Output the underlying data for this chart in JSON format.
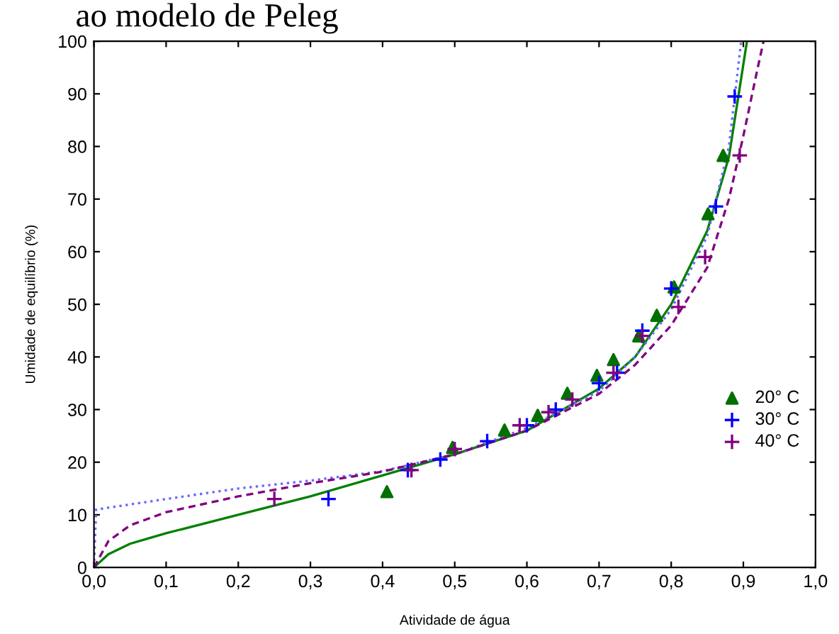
{
  "chart_data": {
    "type": "scatter",
    "title": "ao modelo de Peleg",
    "xlabel": "Atividade de água",
    "ylabel": "Umidade de equilíbrio (%)",
    "xlim": [
      0,
      1
    ],
    "ylim": [
      0,
      100
    ],
    "xticks": [
      {
        "value": 0,
        "label": "0,0"
      },
      {
        "value": 0.1,
        "label": "0,1"
      },
      {
        "value": 0.2,
        "label": "0,2"
      },
      {
        "value": 0.3,
        "label": "0,3"
      },
      {
        "value": 0.4,
        "label": "0,4"
      },
      {
        "value": 0.5,
        "label": "0,5"
      },
      {
        "value": 0.6,
        "label": "0,6"
      },
      {
        "value": 0.7,
        "label": "0,7"
      },
      {
        "value": 0.8,
        "label": "0,8"
      },
      {
        "value": 0.9,
        "label": "0,9"
      },
      {
        "value": 1,
        "label": "1,0"
      }
    ],
    "yticks": [
      0,
      10,
      20,
      30,
      40,
      50,
      60,
      70,
      80,
      90,
      100
    ],
    "grid": false,
    "legend": "right",
    "series": [
      {
        "name": "20° C",
        "marker": "triangle",
        "color": "#007000",
        "x": [
          0.406,
          0.497,
          0.569,
          0.615,
          0.656,
          0.697,
          0.72,
          0.755,
          0.78,
          0.804,
          0.851,
          0.872
        ],
        "values": [
          14.4,
          22.8,
          26.1,
          28.9,
          33.1,
          36.5,
          39.5,
          44,
          47.9,
          53.3,
          67.2,
          78.3
        ]
      },
      {
        "name": "30° C",
        "marker": "cross",
        "color": "#0000ff",
        "x": [
          0.325,
          0.435,
          0.48,
          0.545,
          0.6,
          0.64,
          0.7,
          0.725,
          0.76,
          0.8,
          0.862,
          0.888
        ],
        "values": [
          13,
          18.5,
          20.5,
          24,
          27,
          30,
          35,
          37,
          45,
          53,
          68.6,
          89.5
        ]
      },
      {
        "name": "40° C",
        "marker": "cross",
        "color": "#800080",
        "x": [
          0.25,
          0.44,
          0.5,
          0.59,
          0.63,
          0.663,
          0.72,
          0.76,
          0.81,
          0.847,
          0.895
        ],
        "values": [
          13,
          18.5,
          22.5,
          27,
          29.5,
          31.9,
          37,
          44,
          49.5,
          59,
          78.3
        ]
      },
      {
        "type": "line",
        "line_style": "solid",
        "color": "#008000",
        "x": [
          0,
          0.02,
          0.05,
          0.1,
          0.2,
          0.3,
          0.4,
          0.5,
          0.6,
          0.7,
          0.75,
          0.8,
          0.85,
          0.88,
          0.905
        ],
        "values": [
          0,
          2.5,
          4.5,
          6.5,
          10,
          13.5,
          17.5,
          21.5,
          26,
          34,
          40,
          50,
          64,
          78,
          100
        ]
      },
      {
        "type": "line",
        "line_style": "dotted",
        "color": "#6a6aff",
        "x": [
          0,
          0.003,
          0.1,
          0.2,
          0.3,
          0.4,
          0.5,
          0.6,
          0.7,
          0.75,
          0.8,
          0.85,
          0.88,
          0.897
        ],
        "values": [
          0,
          11,
          13,
          15,
          16.5,
          18.3,
          21.5,
          26.5,
          33.5,
          40,
          49,
          63,
          80,
          100
        ]
      },
      {
        "type": "line",
        "line_style": "dashed",
        "color": "#800080",
        "x": [
          0,
          0.02,
          0.05,
          0.1,
          0.2,
          0.3,
          0.4,
          0.5,
          0.6,
          0.7,
          0.75,
          0.8,
          0.85,
          0.88,
          0.9,
          0.92,
          0.928
        ],
        "values": [
          0,
          5,
          8,
          10.5,
          13.5,
          16,
          18.2,
          21.5,
          26,
          33,
          38.5,
          46,
          57,
          70,
          82,
          95,
          100
        ]
      }
    ]
  }
}
